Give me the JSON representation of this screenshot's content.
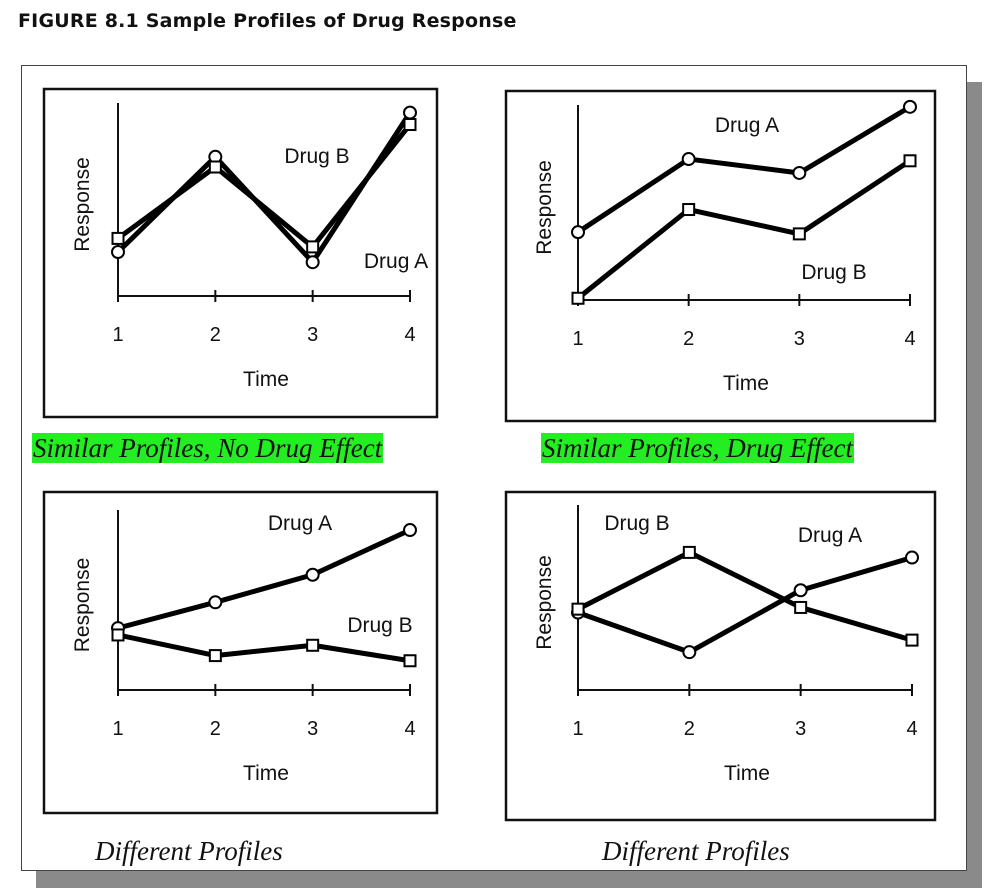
{
  "figure_title": "FIGURE 8.1  Sample Profiles of Drug Response",
  "colors": {
    "highlight": "#22ee22",
    "line": "#000000",
    "frame_shadow": "#8a8a8a"
  },
  "chart_data": [
    {
      "type": "line",
      "caption": "Similar Profiles, No Drug Effect",
      "caption_highlighted": true,
      "xlabel": "Time",
      "ylabel": "Response",
      "x": [
        1,
        2,
        3,
        4
      ],
      "ylim": [
        0,
        10
      ],
      "series": [
        {
          "name": "Drug A",
          "marker": "circle",
          "values": [
            2.0,
            7.6,
            1.4,
            10.2
          ]
        },
        {
          "name": "Drug B",
          "marker": "square",
          "values": [
            2.8,
            7.0,
            2.3,
            9.5
          ]
        }
      ],
      "legend": "inline-labels"
    },
    {
      "type": "line",
      "caption": "Similar Profiles, Drug Effect",
      "caption_highlighted": true,
      "xlabel": "Time",
      "ylabel": "Response",
      "x": [
        1,
        2,
        3,
        4
      ],
      "ylim": [
        0,
        10
      ],
      "series": [
        {
          "name": "Drug A",
          "marker": "circle",
          "values": [
            3.9,
            8.1,
            7.3,
            11.1
          ]
        },
        {
          "name": "Drug B",
          "marker": "square",
          "values": [
            0.1,
            5.2,
            3.8,
            8.0
          ]
        }
      ],
      "legend": "inline-labels"
    },
    {
      "type": "line",
      "caption": "Different Profiles",
      "caption_highlighted": false,
      "xlabel": "Time",
      "ylabel": "Response",
      "x": [
        1,
        2,
        3,
        4
      ],
      "ylim": [
        0,
        10
      ],
      "series": [
        {
          "name": "Drug A",
          "marker": "circle",
          "values": [
            3.6,
            5.1,
            6.7,
            9.3
          ]
        },
        {
          "name": "Drug B",
          "marker": "square",
          "values": [
            3.2,
            2.0,
            2.6,
            1.7
          ]
        }
      ],
      "legend": "inline-labels"
    },
    {
      "type": "line",
      "caption": "Different Profiles",
      "caption_highlighted": false,
      "xlabel": "Time",
      "ylabel": "Response",
      "x": [
        1,
        2,
        3,
        4
      ],
      "ylim": [
        0,
        10
      ],
      "series": [
        {
          "name": "Drug A",
          "marker": "circle",
          "values": [
            4.5,
            2.2,
            5.8,
            7.7
          ]
        },
        {
          "name": "Drug B",
          "marker": "square",
          "values": [
            4.7,
            8.0,
            4.8,
            2.9
          ]
        }
      ],
      "legend": "inline-labels"
    }
  ]
}
